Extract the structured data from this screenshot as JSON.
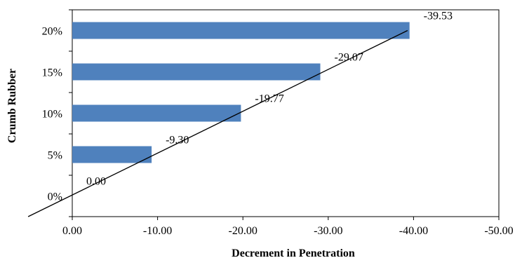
{
  "chart_data": {
    "type": "bar",
    "orientation": "horizontal",
    "categories": [
      "0%",
      "5%",
      "10%",
      "15%",
      "20%"
    ],
    "values": [
      0.0,
      -9.3,
      -19.77,
      -29.07,
      -39.53
    ],
    "data_labels": [
      "0.00",
      "-9.30",
      "-19.77",
      "-29.07",
      "-39.53"
    ],
    "xlabel": "Decrement in Penetration",
    "ylabel": "Crumb Rubber",
    "xlim": [
      0,
      -50
    ],
    "x_ticks": [
      0,
      -10,
      -20,
      -30,
      -40,
      -50
    ],
    "x_tick_labels": [
      "0.00",
      "-10.00",
      "-20.00",
      "-30.00",
      "-40.00",
      "-50.00"
    ],
    "trendline": "linear",
    "grid": false,
    "bar_color": "#4f81bd",
    "trendline_color": "#000000"
  }
}
